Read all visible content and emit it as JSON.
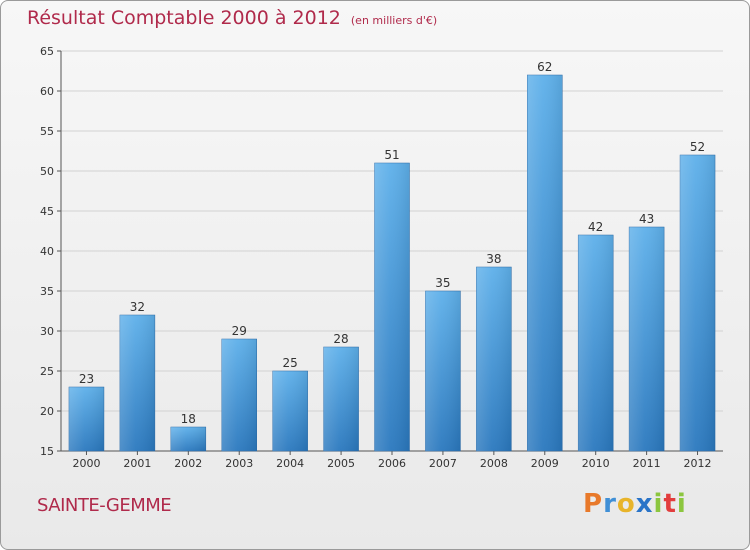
{
  "chart_data": {
    "type": "bar",
    "title": "Résultat Comptable 2000 à 2012",
    "subtitle": "(en milliers d'€)",
    "categories": [
      "2000",
      "2001",
      "2002",
      "2003",
      "2004",
      "2005",
      "2006",
      "2007",
      "2008",
      "2009",
      "2010",
      "2011",
      "2012"
    ],
    "values": [
      23,
      32,
      18,
      29,
      25,
      28,
      51,
      35,
      38,
      62,
      42,
      43,
      52
    ],
    "ylim": [
      15,
      65
    ],
    "yticks": [
      15,
      20,
      25,
      30,
      35,
      40,
      45,
      50,
      55,
      60,
      65
    ],
    "xlabel": "",
    "ylabel": "",
    "grid": true,
    "bar_color": "#3a8fd6"
  },
  "commune": "SAINTE-GEMME",
  "logo": {
    "letters": [
      "P",
      "r",
      "o",
      "x",
      "i",
      "t",
      "i"
    ],
    "colors": [
      "#e8792a",
      "#3f8fd6",
      "#e8b42a",
      "#2a74c8",
      "#8cc63f",
      "#e23d3d",
      "#8cc63f"
    ]
  }
}
